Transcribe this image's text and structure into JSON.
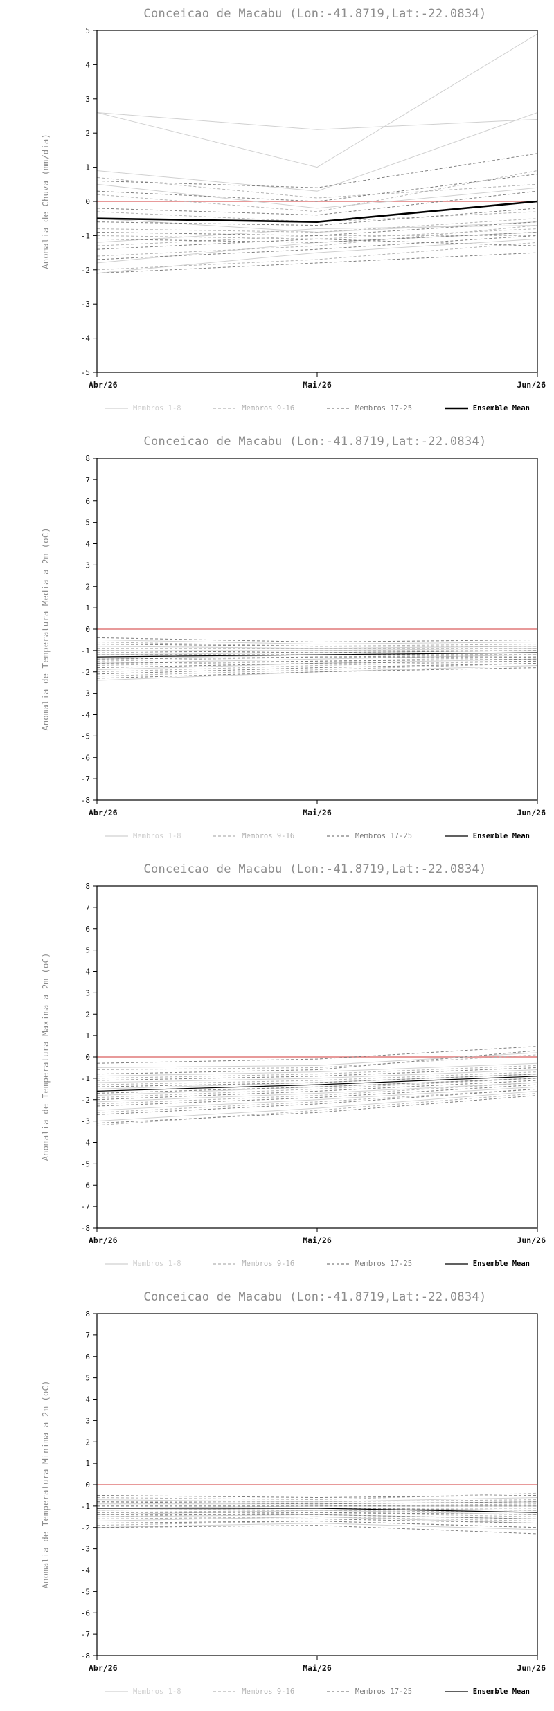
{
  "page": {
    "background": "#ffffff"
  },
  "style": {
    "title_color": "#8c8c8c",
    "ylabel_color": "#8c8c8c",
    "axis_color": "#000000",
    "tick_label_color": "#111111",
    "zero_line_color": "#e07878",
    "mean_color": "#000000",
    "group_colors": [
      "#d0d0d0",
      "#b2b2b2",
      "#7d7d7d"
    ],
    "group_dashes": [
      "",
      "4,3",
      "4,3"
    ]
  },
  "chart_data": [
    {
      "type": "line",
      "title": "Conceicao de Macabu (Lon:-41.8719,Lat:-22.0834)",
      "ylabel": "Anomalia de Chuva (mm/dia)",
      "ylim": [
        -5,
        5
      ],
      "ytick_step": 1,
      "grid": false,
      "legend_position": "bottom",
      "x_labels": [
        "Abr/26",
        "Mai/26",
        "Jun/26"
      ],
      "zero_value": 0,
      "mean": {
        "label": "Ensemble Mean",
        "width": 2.6,
        "values": [
          -0.5,
          -0.6,
          0.0
        ]
      },
      "groups": [
        {
          "label": "Membros 1-8",
          "members": [
            [
              2.6,
              1.0,
              4.9
            ],
            [
              2.6,
              2.1,
              2.4
            ],
            [
              0.9,
              0.3,
              2.6
            ],
            [
              0.5,
              -0.2,
              0.4
            ],
            [
              -0.5,
              -0.9,
              -0.6
            ],
            [
              -1.2,
              -0.8,
              -0.7
            ],
            [
              -1.8,
              -1.2,
              -0.9
            ],
            [
              -2.1,
              -1.5,
              -1.1
            ]
          ]
        },
        {
          "label": "Membros 9-16",
          "members": [
            [
              0.7,
              0.1,
              0.5
            ],
            [
              0.2,
              -0.3,
              0.9
            ],
            [
              -0.3,
              -0.6,
              -0.3
            ],
            [
              -0.8,
              -0.9,
              -0.5
            ],
            [
              -1.0,
              -1.1,
              -0.8
            ],
            [
              -1.3,
              -1.0,
              -1.0
            ],
            [
              -1.6,
              -1.3,
              -0.7
            ],
            [
              -2.0,
              -1.7,
              -1.2
            ]
          ]
        },
        {
          "label": "Membros 17-25",
          "members": [
            [
              0.6,
              0.4,
              1.4
            ],
            [
              0.3,
              0.0,
              0.8
            ],
            [
              -0.2,
              -0.4,
              0.3
            ],
            [
              -0.6,
              -0.7,
              -0.2
            ],
            [
              -0.9,
              -1.0,
              -0.6
            ],
            [
              -1.1,
              -1.2,
              -0.9
            ],
            [
              -1.4,
              -1.1,
              -1.3
            ],
            [
              -1.7,
              -1.4,
              -1.0
            ],
            [
              -2.1,
              -1.8,
              -1.5
            ]
          ]
        }
      ]
    },
    {
      "type": "line",
      "title": "Conceicao de Macabu (Lon:-41.8719,Lat:-22.0834)",
      "ylabel": "Anomalia de Temperatura Media a 2m (oC)",
      "ylim": [
        -8,
        8
      ],
      "ytick_step": 1,
      "grid": false,
      "legend_position": "bottom",
      "x_labels": [
        "Abr/26",
        "Mai/26",
        "Jun/26"
      ],
      "zero_value": 0,
      "mean": {
        "label": "Ensemble Mean",
        "width": 1.2,
        "values": [
          -1.3,
          -1.2,
          -1.1
        ]
      },
      "groups": [
        {
          "label": "Membros 1-8",
          "members": [
            [
              -0.5,
              -0.7,
              -0.6
            ],
            [
              -0.8,
              -0.9,
              -0.8
            ],
            [
              -1.0,
              -1.0,
              -0.9
            ],
            [
              -1.2,
              -1.1,
              -1.0
            ],
            [
              -1.4,
              -1.2,
              -1.1
            ],
            [
              -1.6,
              -1.4,
              -1.2
            ],
            [
              -1.9,
              -1.6,
              -1.4
            ],
            [
              -2.4,
              -2.0,
              -1.7
            ]
          ]
        },
        {
          "label": "Membros 9-16",
          "members": [
            [
              -0.6,
              -0.8,
              -0.7
            ],
            [
              -0.9,
              -0.9,
              -0.9
            ],
            [
              -1.1,
              -1.0,
              -1.0
            ],
            [
              -1.3,
              -1.2,
              -1.1
            ],
            [
              -1.5,
              -1.3,
              -1.2
            ],
            [
              -1.7,
              -1.5,
              -1.3
            ],
            [
              -2.0,
              -1.7,
              -1.5
            ],
            [
              -2.2,
              -1.9,
              -1.6
            ]
          ]
        },
        {
          "label": "Membros 17-25",
          "members": [
            [
              -0.4,
              -0.6,
              -0.5
            ],
            [
              -0.7,
              -0.8,
              -0.8
            ],
            [
              -1.0,
              -1.1,
              -1.0
            ],
            [
              -1.2,
              -1.2,
              -1.2
            ],
            [
              -1.4,
              -1.3,
              -1.3
            ],
            [
              -1.6,
              -1.5,
              -1.4
            ],
            [
              -1.8,
              -1.6,
              -1.5
            ],
            [
              -2.1,
              -1.8,
              -1.6
            ],
            [
              -2.3,
              -2.0,
              -1.8
            ]
          ]
        }
      ]
    },
    {
      "type": "line",
      "title": "Conceicao de Macabu (Lon:-41.8719,Lat:-22.0834)",
      "ylabel": "Anomalia de Temperatura Maxima a 2m (oC)",
      "ylim": [
        -8,
        8
      ],
      "ytick_step": 1,
      "grid": false,
      "legend_position": "bottom",
      "x_labels": [
        "Abr/26",
        "Mai/26",
        "Jun/26"
      ],
      "zero_value": 0,
      "mean": {
        "label": "Ensemble Mean",
        "width": 1.2,
        "values": [
          -1.6,
          -1.3,
          -0.9
        ]
      },
      "groups": [
        {
          "label": "Membros 1-8",
          "members": [
            [
              -0.5,
              -0.4,
              0.2
            ],
            [
              -0.9,
              -0.7,
              -0.3
            ],
            [
              -1.2,
              -1.0,
              -0.6
            ],
            [
              -1.5,
              -1.2,
              -0.8
            ],
            [
              -1.8,
              -1.4,
              -1.0
            ],
            [
              -2.1,
              -1.7,
              -1.2
            ],
            [
              -2.5,
              -2.0,
              -1.4
            ],
            [
              -3.0,
              -2.4,
              -1.6
            ]
          ]
        },
        {
          "label": "Membros 9-16",
          "members": [
            [
              -0.6,
              -0.5,
              0.1
            ],
            [
              -1.0,
              -0.8,
              -0.4
            ],
            [
              -1.3,
              -1.1,
              -0.7
            ],
            [
              -1.6,
              -1.3,
              -0.9
            ],
            [
              -1.9,
              -1.5,
              -1.0
            ],
            [
              -2.2,
              -1.8,
              -1.2
            ],
            [
              -2.6,
              -2.1,
              -1.5
            ],
            [
              -3.2,
              -2.5,
              -1.7
            ]
          ]
        },
        {
          "label": "Membros 17-25",
          "members": [
            [
              -0.3,
              -0.1,
              0.5
            ],
            [
              -0.8,
              -0.6,
              0.3
            ],
            [
              -1.1,
              -0.9,
              -0.5
            ],
            [
              -1.4,
              -1.2,
              -0.8
            ],
            [
              -1.7,
              -1.4,
              -1.0
            ],
            [
              -2.0,
              -1.6,
              -1.1
            ],
            [
              -2.3,
              -1.9,
              -1.3
            ],
            [
              -2.7,
              -2.2,
              -1.5
            ],
            [
              -3.1,
              -2.6,
              -1.8
            ]
          ]
        }
      ]
    },
    {
      "type": "line",
      "title": "Conceicao de Macabu (Lon:-41.8719,Lat:-22.0834)",
      "ylabel": "Anomalia de Temperatura Minima a 2m (oC)",
      "ylim": [
        -8,
        8
      ],
      "ytick_step": 1,
      "grid": false,
      "legend_position": "bottom",
      "x_labels": [
        "Abr/26",
        "Mai/26",
        "Jun/26"
      ],
      "zero_value": 0,
      "mean": {
        "label": "Ensemble Mean",
        "width": 1.2,
        "values": [
          -1.1,
          -1.1,
          -1.3
        ]
      },
      "groups": [
        {
          "label": "Membros 1-8",
          "members": [
            [
              -0.7,
              -0.8,
              -0.6
            ],
            [
              -0.9,
              -0.9,
              -0.8
            ],
            [
              -1.1,
              -1.0,
              -1.0
            ],
            [
              -1.2,
              -1.1,
              -1.2
            ],
            [
              -1.4,
              -1.2,
              -1.4
            ],
            [
              -1.5,
              -1.4,
              -1.6
            ],
            [
              -1.7,
              -1.5,
              -1.8
            ],
            [
              -2.0,
              -1.8,
              -2.1
            ]
          ]
        },
        {
          "label": "Membros 9-16",
          "members": [
            [
              -0.6,
              -0.7,
              -0.4
            ],
            [
              -0.8,
              -0.8,
              -0.7
            ],
            [
              -1.0,
              -1.0,
              -0.9
            ],
            [
              -1.2,
              -1.1,
              -1.1
            ],
            [
              -1.3,
              -1.2,
              -1.3
            ],
            [
              -1.5,
              -1.3,
              -1.5
            ],
            [
              -1.6,
              -1.5,
              -1.7
            ],
            [
              -1.9,
              -1.7,
              -2.0
            ]
          ]
        },
        {
          "label": "Membros 17-25",
          "members": [
            [
              -0.5,
              -0.6,
              -0.5
            ],
            [
              -0.8,
              -0.9,
              -0.8
            ],
            [
              -1.0,
              -1.0,
              -1.0
            ],
            [
              -1.1,
              -1.1,
              -1.2
            ],
            [
              -1.3,
              -1.3,
              -1.4
            ],
            [
              -1.4,
              -1.4,
              -1.6
            ],
            [
              -1.6,
              -1.6,
              -1.8
            ],
            [
              -1.8,
              -1.7,
              -2.0
            ],
            [
              -2.0,
              -1.9,
              -2.3
            ]
          ]
        }
      ]
    }
  ]
}
